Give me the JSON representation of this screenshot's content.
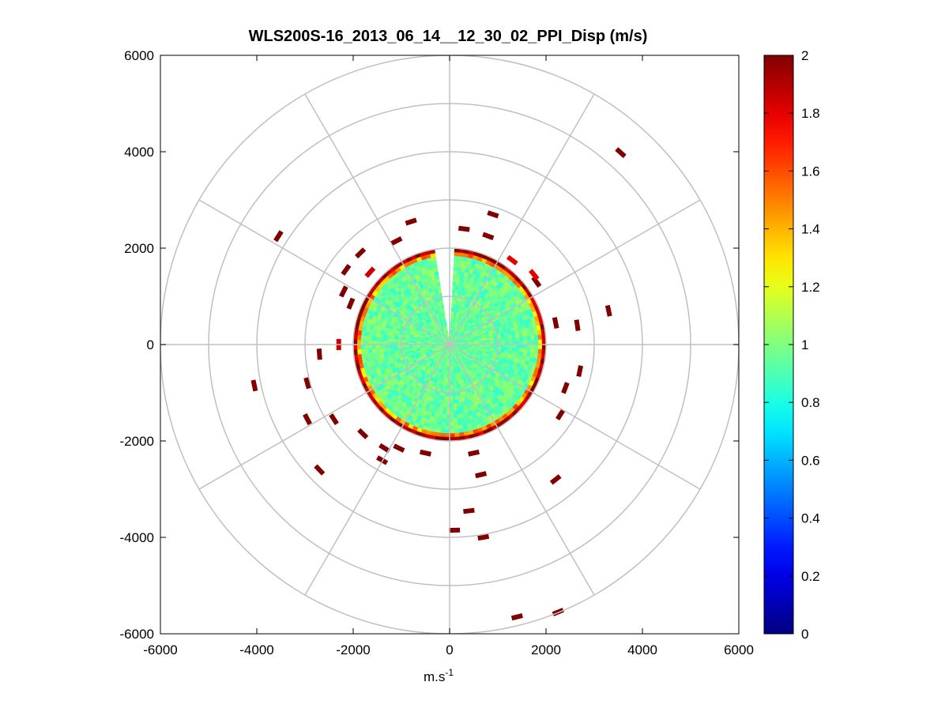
{
  "chart_data": {
    "type": "heatmap",
    "subtype": "polar PPI scan",
    "title": "WLS200S-16_2013_06_14__12_30_02_PPI_Disp (m/s)",
    "xlabel": "m.s",
    "xlabel_superscript": "-1",
    "ylabel": "",
    "xlim": [
      -6000,
      6000
    ],
    "ylim": [
      -6000,
      6000
    ],
    "x_ticks": [
      -6000,
      -4000,
      -2000,
      0,
      2000,
      4000,
      6000
    ],
    "y_ticks": [
      -6000,
      -4000,
      -2000,
      0,
      2000,
      4000,
      6000
    ],
    "x_tick_labels": [
      "-6000",
      "-4000",
      "-2000",
      "0",
      "2000",
      "4000",
      "6000"
    ],
    "y_tick_labels": [
      "-6000",
      "-4000",
      "-2000",
      "0",
      "2000",
      "4000",
      "6000"
    ],
    "grid": {
      "type": "polar",
      "ring_radii": [
        1000,
        2000,
        3000,
        4000,
        5000,
        6000
      ],
      "spoke_angles_deg": [
        0,
        30,
        60,
        90,
        120,
        150,
        180,
        210,
        240,
        270,
        300,
        330
      ],
      "color": "#c0c0c0"
    },
    "colorbar": {
      "colormap": "jet",
      "range": [
        0,
        2
      ],
      "ticks": [
        0,
        0.2,
        0.4,
        0.6,
        0.8,
        1,
        1.2,
        1.4,
        1.6,
        1.8,
        2
      ],
      "tick_labels": [
        "0",
        "0.2",
        "0.4",
        "0.6",
        "0.8",
        "1",
        "1.2",
        "1.4",
        "1.6",
        "1.8",
        "2"
      ]
    },
    "field": {
      "description": "dispersion (m/s) over polar range gates",
      "valid_radius_max": 2000,
      "typical_value": 0.95,
      "edge_ring_value": 1.9,
      "missing_wedge_deg": [
        -10,
        2
      ]
    },
    "sparse_returns": [
      {
        "x": 3550,
        "y": 3980,
        "value": 2.0
      },
      {
        "x": -3550,
        "y": 2250,
        "value": 2.0
      },
      {
        "x": 900,
        "y": 2700,
        "value": 2.0
      },
      {
        "x": -800,
        "y": 2550,
        "value": 2.0
      },
      {
        "x": 300,
        "y": 2400,
        "value": 2.0
      },
      {
        "x": 800,
        "y": 2250,
        "value": 2.0
      },
      {
        "x": -1100,
        "y": 2150,
        "value": 2.0
      },
      {
        "x": -1850,
        "y": 1900,
        "value": 2.0
      },
      {
        "x": -2150,
        "y": 1550,
        "value": 2.0
      },
      {
        "x": 1800,
        "y": 1300,
        "value": 2.0
      },
      {
        "x": -2200,
        "y": 1100,
        "value": 2.0
      },
      {
        "x": -2050,
        "y": 850,
        "value": 2.0
      },
      {
        "x": 3300,
        "y": 700,
        "value": 2.0
      },
      {
        "x": 2200,
        "y": 450,
        "value": 2.0
      },
      {
        "x": 2650,
        "y": 400,
        "value": 2.0
      },
      {
        "x": -2700,
        "y": -200,
        "value": 2.0
      },
      {
        "x": 2700,
        "y": -550,
        "value": 2.0
      },
      {
        "x": -4050,
        "y": -850,
        "value": 2.0
      },
      {
        "x": 2400,
        "y": -900,
        "value": 2.0
      },
      {
        "x": -2950,
        "y": -800,
        "value": 2.0
      },
      {
        "x": -2950,
        "y": -1550,
        "value": 2.0
      },
      {
        "x": -2400,
        "y": -1550,
        "value": 2.0
      },
      {
        "x": -1800,
        "y": -1850,
        "value": 2.0
      },
      {
        "x": -1350,
        "y": -2150,
        "value": 2.0
      },
      {
        "x": -1050,
        "y": -2150,
        "value": 2.0
      },
      {
        "x": -500,
        "y": -2250,
        "value": 2.0
      },
      {
        "x": 500,
        "y": -2250,
        "value": 2.0
      },
      {
        "x": 2300,
        "y": -1450,
        "value": 2.0
      },
      {
        "x": -2700,
        "y": -2600,
        "value": 2.0
      },
      {
        "x": -1400,
        "y": -2400,
        "value": 2.0
      },
      {
        "x": 650,
        "y": -2700,
        "value": 2.0
      },
      {
        "x": 2200,
        "y": -2800,
        "value": 2.0
      },
      {
        "x": 400,
        "y": -3450,
        "value": 2.0
      },
      {
        "x": 100,
        "y": -3850,
        "value": 2.0
      },
      {
        "x": 700,
        "y": -4000,
        "value": 2.0
      },
      {
        "x": 1400,
        "y": -5650,
        "value": 2.0
      },
      {
        "x": 2250,
        "y": -5550,
        "value": 2.0
      },
      {
        "x": -1650,
        "y": 1500,
        "value": 1.85
      },
      {
        "x": 1750,
        "y": 1450,
        "value": 1.8
      },
      {
        "x": -2300,
        "y": 0,
        "value": 1.85
      },
      {
        "x": 1300,
        "y": 1750,
        "value": 1.8
      }
    ]
  }
}
